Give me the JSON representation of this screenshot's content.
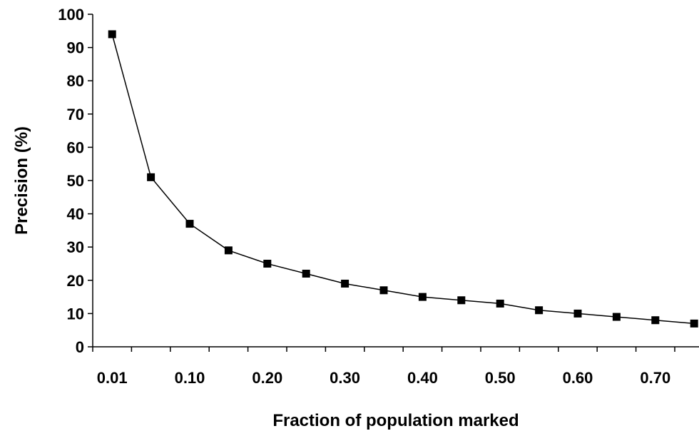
{
  "chart_data": {
    "type": "line",
    "title": "",
    "xlabel": "Fraction of population marked",
    "ylabel": "Precision (%)",
    "ylim": [
      0,
      100
    ],
    "grid": false,
    "legend": "none",
    "x": [
      "0.01",
      "0.05",
      "0.10",
      "0.15",
      "0.20",
      "0.25",
      "0.30",
      "0.35",
      "0.40",
      "0.45",
      "0.50",
      "0.55",
      "0.60",
      "0.65",
      "0.70",
      "0.75"
    ],
    "x_tick_labels": [
      "0.01",
      "0.10",
      "0.20",
      "0.30",
      "0.40",
      "0.50",
      "0.60",
      "0.70"
    ],
    "y_ticks": [
      0,
      10,
      20,
      30,
      40,
      50,
      60,
      70,
      80,
      90,
      100
    ],
    "series": [
      {
        "values": [
          94,
          51,
          37,
          29,
          25,
          22,
          19,
          17,
          15,
          14,
          13,
          11,
          10,
          9,
          8,
          7
        ],
        "color": "#000000",
        "marker": "square"
      }
    ]
  }
}
